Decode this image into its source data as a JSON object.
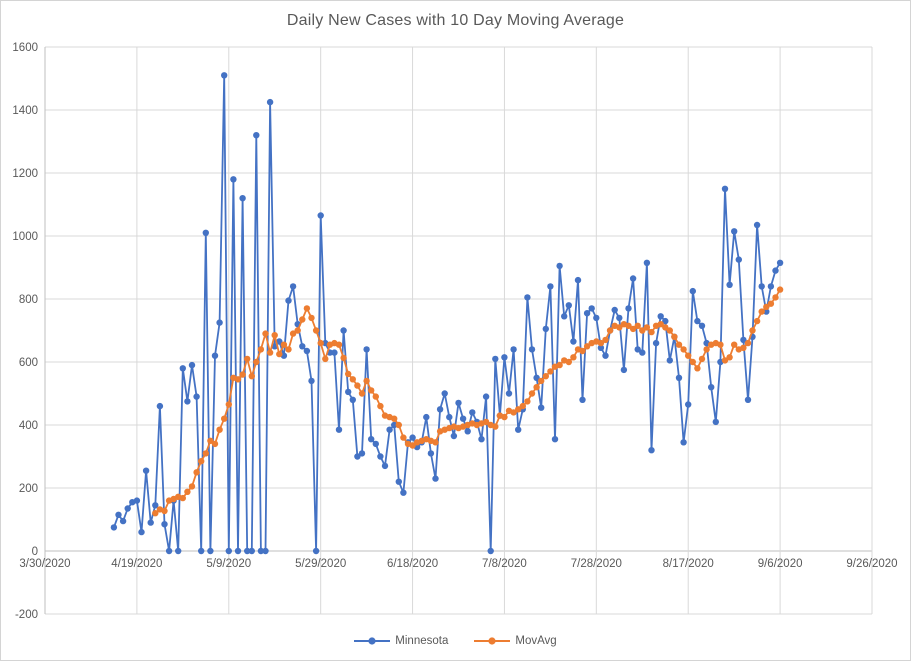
{
  "window": {
    "background": "#ffffff",
    "border_color": "#d4d4d4"
  },
  "colors": {
    "title_text": "#595959",
    "axis_text": "#595959",
    "gridline": "#d9d9d9",
    "axis_line": "#bfbfbf",
    "series_minnesota": "#4472C4",
    "series_movavg": "#ED7D31"
  },
  "chart_data": {
    "type": "line",
    "title": "Daily New Cases with 10 Day Moving Average",
    "grid": true,
    "legend_position": "bottom",
    "x_axis": {
      "tick_labels": [
        "3/30/2020",
        "4/19/2020",
        "5/9/2020",
        "5/29/2020",
        "6/18/2020",
        "7/8/2020",
        "7/28/2020",
        "8/17/2020",
        "9/6/2020",
        "9/26/2020"
      ],
      "tick_interval_days": 20,
      "range_days": 180
    },
    "y_axis": {
      "min": -200,
      "max": 1600,
      "tick_step": 200,
      "tick_labels": [
        "-200",
        "0",
        "200",
        "400",
        "600",
        "800",
        "1000",
        "1200",
        "1400",
        "1600"
      ]
    },
    "series": [
      {
        "name": "Minnesota",
        "color": "#4472C4",
        "marker": "circle",
        "start_date": "4/14/2020",
        "start_day_offset": 15,
        "interval_days": 1,
        "values": [
          75,
          115,
          95,
          135,
          155,
          160,
          60,
          255,
          90,
          145,
          460,
          85,
          0,
          160,
          0,
          580,
          475,
          590,
          490,
          0,
          1010,
          0,
          620,
          725,
          1510,
          0,
          1180,
          0,
          1120,
          0,
          0,
          1320,
          0,
          0,
          1425,
          650,
          665,
          620,
          795,
          840,
          720,
          650,
          635,
          540,
          0,
          1065,
          660,
          630,
          630,
          385,
          700,
          505,
          480,
          300,
          310,
          640,
          355,
          340,
          300,
          270,
          385,
          400,
          220,
          185,
          345,
          360,
          330,
          345,
          425,
          310,
          230,
          450,
          500,
          425,
          365,
          470,
          420,
          380,
          440,
          410,
          355,
          490,
          0,
          610,
          430,
          615,
          500,
          640,
          385,
          450,
          805,
          640,
          550,
          455,
          705,
          840,
          355,
          905,
          745,
          780,
          665,
          860,
          480,
          755,
          770,
          740,
          645,
          620,
          700,
          765,
          740,
          575,
          770,
          865,
          640,
          630,
          915,
          320,
          660,
          745,
          730,
          605,
          680,
          550,
          345,
          465,
          825,
          730,
          715,
          660,
          520,
          410,
          600,
          1150,
          845,
          1015,
          925,
          670,
          480,
          680,
          1035,
          840,
          760,
          840,
          890,
          915
        ]
      },
      {
        "name": "MovAvg",
        "color": "#ED7D31",
        "marker": "circle",
        "start_date": "4/23/2020",
        "start_day_offset": 24,
        "interval_days": 1,
        "values": [
          120,
          132,
          127,
          160,
          165,
          172,
          168,
          188,
          205,
          250,
          285,
          310,
          350,
          340,
          385,
          420,
          465,
          550,
          545,
          560,
          610,
          555,
          600,
          640,
          690,
          630,
          685,
          625,
          655,
          640,
          690,
          700,
          735,
          770,
          740,
          700,
          660,
          610,
          655,
          660,
          655,
          613,
          562,
          545,
          525,
          500,
          540,
          510,
          490,
          460,
          430,
          425,
          420,
          400,
          360,
          340,
          335,
          345,
          350,
          355,
          350,
          345,
          380,
          385,
          390,
          395,
          390,
          395,
          400,
          405,
          400,
          405,
          410,
          400,
          395,
          430,
          425,
          445,
          440,
          450,
          460,
          475,
          500,
          520,
          540,
          555,
          570,
          585,
          590,
          605,
          600,
          615,
          640,
          635,
          650,
          660,
          665,
          660,
          670,
          700,
          715,
          710,
          720,
          715,
          705,
          715,
          700,
          710,
          695,
          715,
          720,
          710,
          700,
          680,
          655,
          640,
          620,
          600,
          580,
          610,
          640,
          655,
          660,
          655,
          605,
          615,
          655,
          640,
          645,
          660,
          700,
          730,
          760,
          775,
          785,
          805,
          830
        ]
      }
    ]
  }
}
